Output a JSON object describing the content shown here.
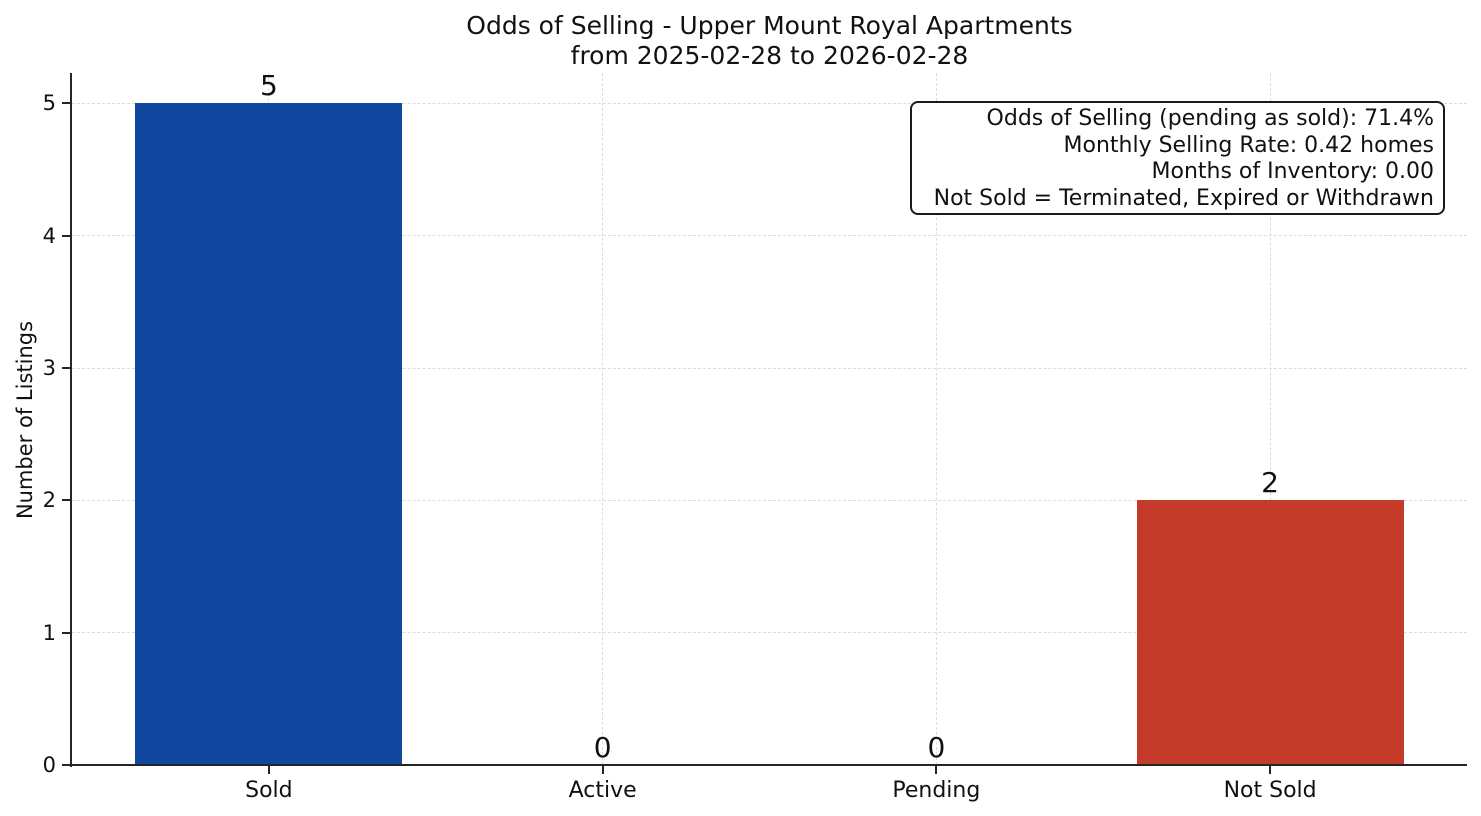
{
  "chart_data": {
    "type": "bar",
    "title": "Odds of Selling - Upper Mount Royal Apartments from 2025-02-28 to 2026-02-28",
    "title_lines": [
      "Odds of Selling - Upper Mount Royal Apartments",
      "from 2025-02-28 to 2026-02-28"
    ],
    "categories": [
      "Sold",
      "Active",
      "Pending",
      "Not Sold"
    ],
    "values": [
      5,
      0,
      0,
      2
    ],
    "value_labels": [
      "5",
      "0",
      "0",
      "2"
    ],
    "bar_colors": [
      "#11479e",
      null,
      null,
      "#c43b2c"
    ],
    "xlabel": "",
    "ylabel": "Number of Listings",
    "ylim": [
      0,
      5.23
    ],
    "yticks": [
      0,
      1,
      2,
      3,
      4,
      5
    ],
    "grid": {
      "axes": "both",
      "style": "dashed",
      "color": "#dcdcdc"
    },
    "axis_color": "#262626",
    "legend": "none",
    "annotation": {
      "position": "top-right",
      "lines": [
        "Odds of Selling (pending as sold): 71.4%",
        "Monthly Selling Rate: 0.42 homes",
        "Months of Inventory: 0.00",
        "Not Sold = Terminated, Expired or Withdrawn"
      ]
    }
  }
}
